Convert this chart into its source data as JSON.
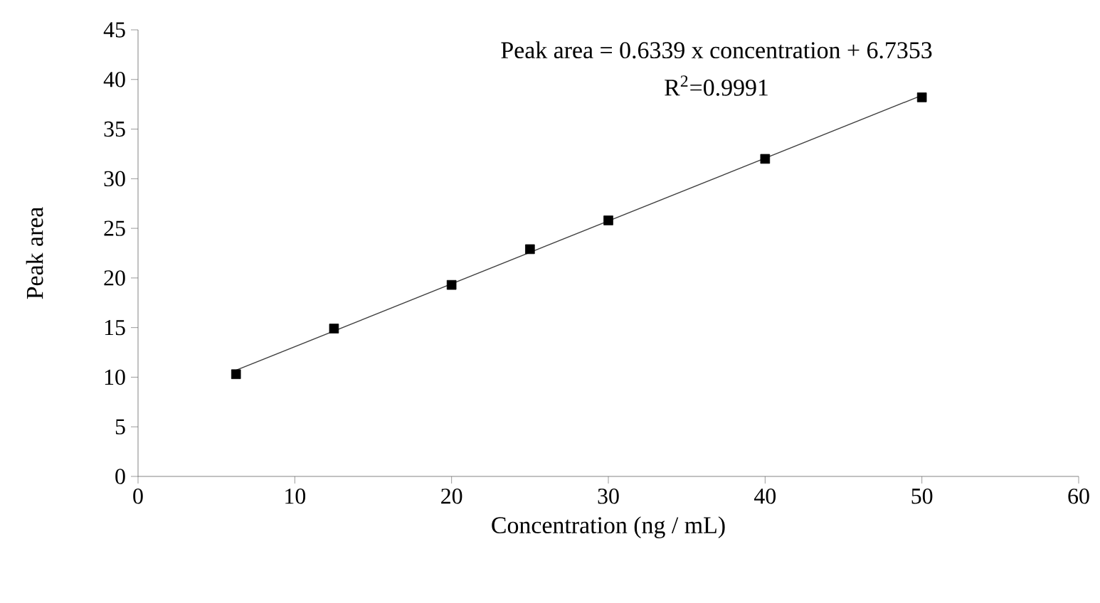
{
  "chart_data": {
    "type": "scatter",
    "xlabel": "Concentration (ng / mL)",
    "ylabel": "Peak area",
    "annotations": [
      "Peak area = 0.6339 x concentration + 6.7353",
      "R$^{2}$=0.9991"
    ],
    "xlim": [
      0,
      60
    ],
    "xticks": [
      0,
      10,
      20,
      30,
      40,
      50,
      60
    ],
    "ylim": [
      0,
      45
    ],
    "yticks": [
      0,
      5,
      10,
      15,
      20,
      25,
      30,
      35,
      40,
      45
    ],
    "series": [
      {
        "marker": "square",
        "color": "#000000",
        "x": [
          6.25,
          12.5,
          20,
          25,
          30,
          40,
          50
        ],
        "values": [
          10.3,
          14.9,
          19.3,
          22.9,
          25.8,
          32.0,
          38.2
        ]
      },
      {
        "type": "line",
        "color": "#404040",
        "x": [
          6.25,
          50
        ],
        "values": [
          10.7,
          38.4
        ]
      }
    ]
  }
}
